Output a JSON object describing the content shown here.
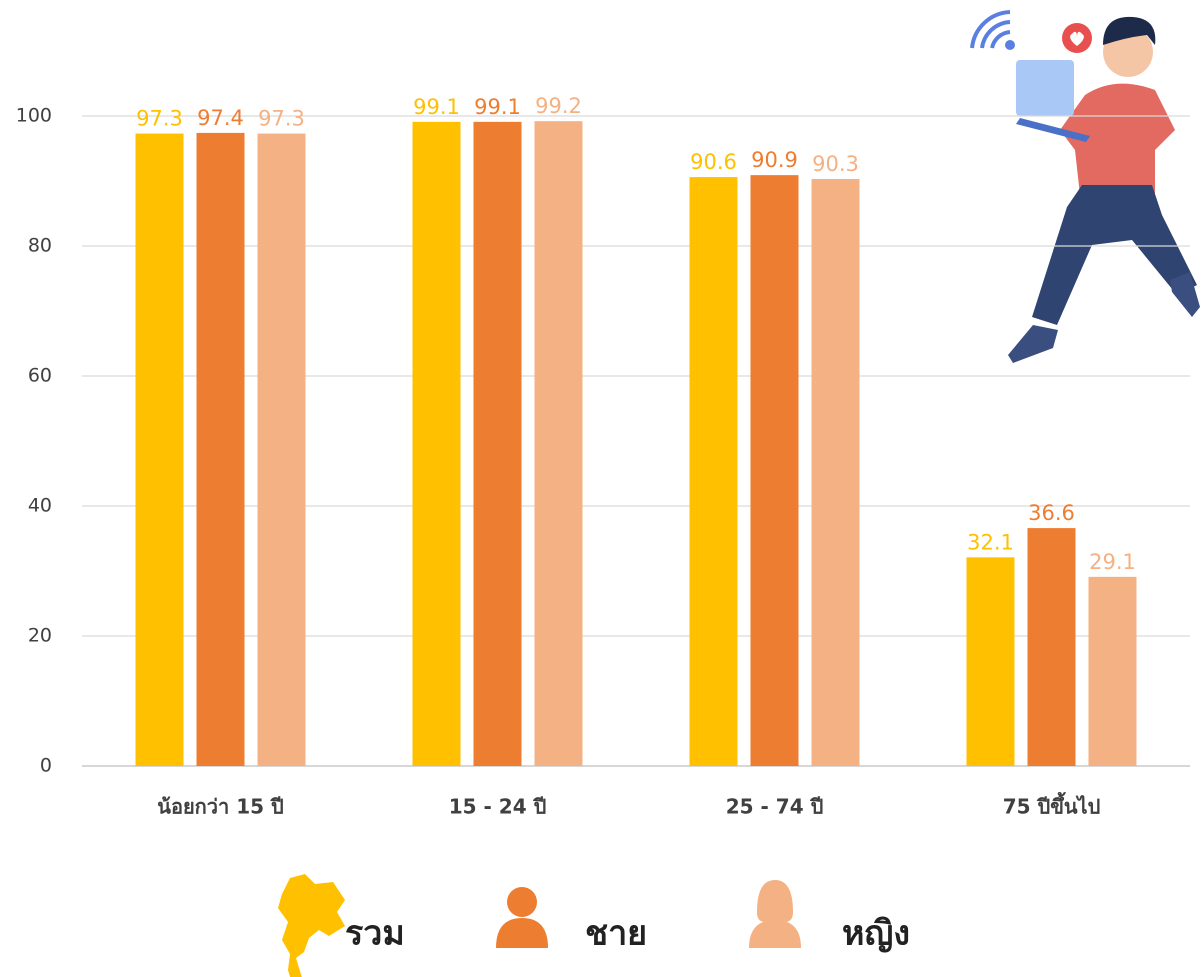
{
  "chart_data": {
    "type": "bar",
    "categories": [
      "น้อยกว่า 15 ปี",
      "15 - 24 ปี",
      "25 - 74 ปี",
      "75 ปีขึ้นไป"
    ],
    "series": [
      {
        "name": "รวม",
        "color": "#FFC000",
        "values": [
          97.3,
          99.1,
          90.6,
          32.1
        ]
      },
      {
        "name": "ชาย",
        "color": "#ED7D31",
        "values": [
          97.4,
          99.1,
          90.9,
          36.6
        ]
      },
      {
        "name": "หญิง",
        "color": "#F4B183",
        "values": [
          97.3,
          99.2,
          90.3,
          29.1
        ]
      }
    ],
    "ylim": [
      0,
      100
    ],
    "yticks": [
      0,
      20,
      40,
      60,
      80,
      100
    ],
    "grid": true,
    "legend": "bottom"
  }
}
